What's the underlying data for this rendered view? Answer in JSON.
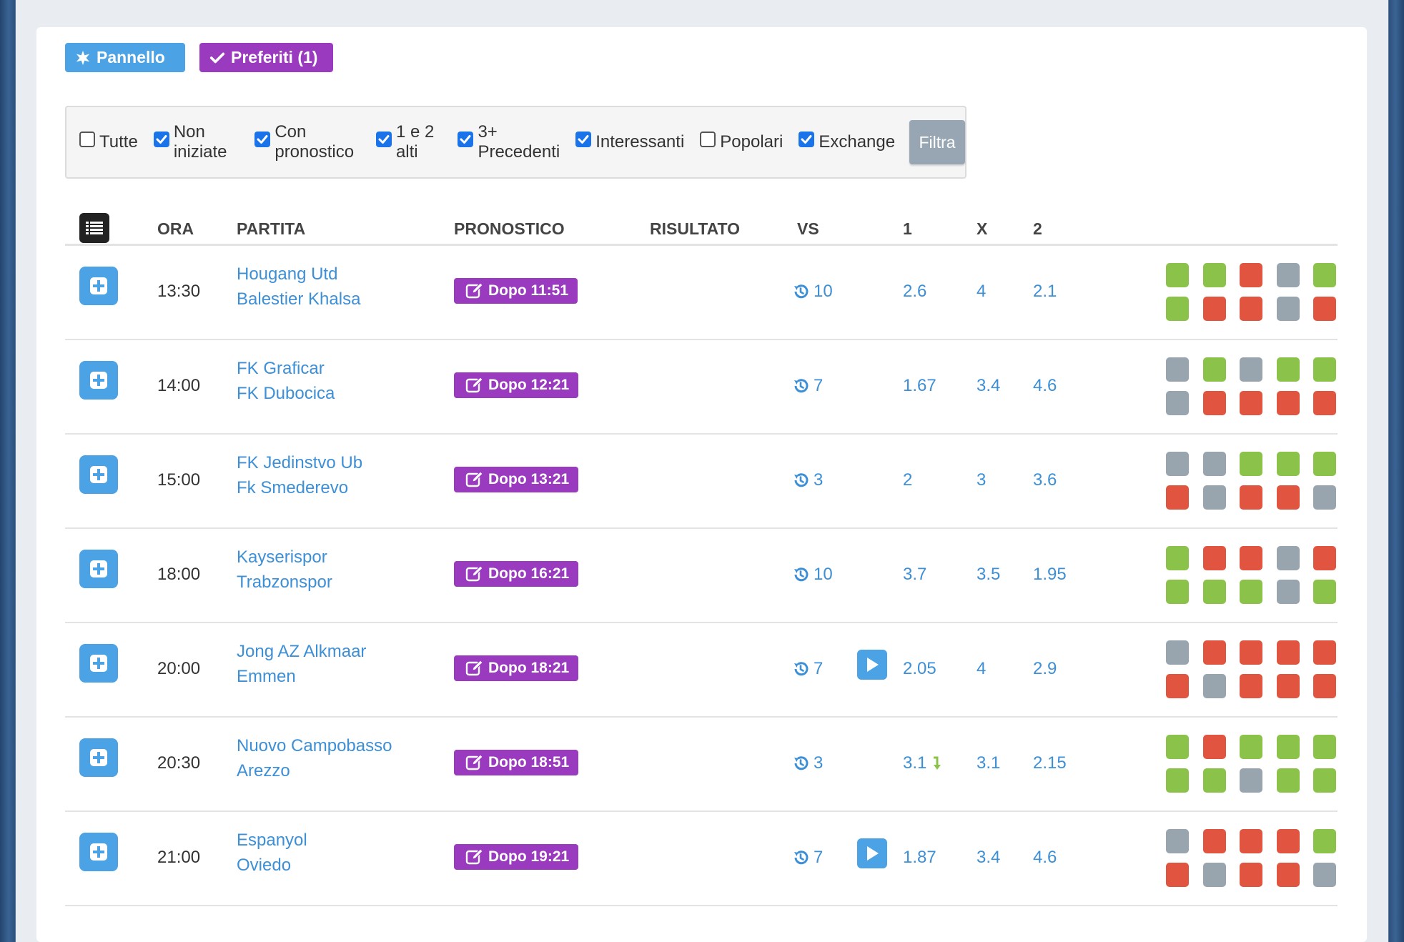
{
  "buttons": {
    "pannello": "Pannello",
    "preferiti": "Preferiti (1)"
  },
  "filters": [
    {
      "label": "Tutte",
      "checked": false
    },
    {
      "label": "Non iniziate",
      "checked": true
    },
    {
      "label": "Con pronostico",
      "checked": true
    },
    {
      "label": "1 e 2 alti",
      "checked": true
    },
    {
      "label": "3+ Precedenti",
      "checked": true
    },
    {
      "label": "Interessanti",
      "checked": true
    },
    {
      "label": "Popolari",
      "checked": false
    },
    {
      "label": "Exchange",
      "checked": true
    }
  ],
  "filtra_label": "Filtra",
  "columns": {
    "ora": "ORA",
    "partita": "PARTITA",
    "pronostico": "PRONOSTICO",
    "risultato": "RISULTATO",
    "vs": "VS",
    "c1": "1",
    "cx": "X",
    "c2": "2"
  },
  "colors": {
    "accent": "#4ba2e4",
    "purple": "#9a3bbf",
    "link": "#3d8fd6",
    "win": "#8bc34a",
    "loss": "#e05440",
    "draw": "#98a4ae"
  },
  "matches": [
    {
      "time": "13:30",
      "home": "Hougang Utd",
      "away": "Balestier Khalsa",
      "prono": "Dopo 11:51",
      "vs": "10",
      "play": false,
      "o1": "2.6",
      "o1_trend": "",
      "ox": "4",
      "o2": "2.1",
      "form": [
        "g",
        "g",
        "r",
        "s",
        "g",
        "g",
        "r",
        "r",
        "s",
        "r"
      ]
    },
    {
      "time": "14:00",
      "home": "FK Graficar",
      "away": "FK Dubocica",
      "prono": "Dopo 12:21",
      "vs": "7",
      "play": false,
      "o1": "1.67",
      "o1_trend": "",
      "ox": "3.4",
      "o2": "4.6",
      "form": [
        "s",
        "g",
        "s",
        "g",
        "g",
        "s",
        "r",
        "r",
        "r",
        "r"
      ]
    },
    {
      "time": "15:00",
      "home": "FK Jedinstvo Ub",
      "away": "Fk Smederevo",
      "prono": "Dopo 13:21",
      "vs": "3",
      "play": false,
      "o1": "2",
      "o1_trend": "",
      "ox": "3",
      "o2": "3.6",
      "form": [
        "s",
        "s",
        "g",
        "g",
        "g",
        "r",
        "s",
        "r",
        "r",
        "s"
      ]
    },
    {
      "time": "18:00",
      "home": "Kayserispor",
      "away": "Trabzonspor",
      "prono": "Dopo 16:21",
      "vs": "10",
      "play": false,
      "o1": "3.7",
      "o1_trend": "",
      "ox": "3.5",
      "o2": "1.95",
      "form": [
        "g",
        "r",
        "r",
        "s",
        "r",
        "g",
        "g",
        "g",
        "s",
        "g"
      ]
    },
    {
      "time": "20:00",
      "home": "Jong AZ Alkmaar",
      "away": "Emmen",
      "prono": "Dopo 18:21",
      "vs": "7",
      "play": true,
      "o1": "2.05",
      "o1_trend": "",
      "ox": "4",
      "o2": "2.9",
      "form": [
        "s",
        "r",
        "r",
        "r",
        "r",
        "r",
        "s",
        "r",
        "r",
        "r"
      ]
    },
    {
      "time": "20:30",
      "home": "Nuovo Campobasso",
      "away": "Arezzo",
      "prono": "Dopo 18:51",
      "vs": "3",
      "play": false,
      "o1": "3.1",
      "o1_trend": "down",
      "ox": "3.1",
      "o2": "2.15",
      "form": [
        "g",
        "r",
        "g",
        "g",
        "g",
        "g",
        "g",
        "s",
        "g",
        "g"
      ]
    },
    {
      "time": "21:00",
      "home": "Espanyol",
      "away": "Oviedo",
      "prono": "Dopo 19:21",
      "vs": "7",
      "play": true,
      "o1": "1.87",
      "o1_trend": "",
      "ox": "3.4",
      "o2": "4.6",
      "form": [
        "s",
        "r",
        "r",
        "r",
        "g",
        "r",
        "s",
        "r",
        "r",
        "s"
      ]
    }
  ]
}
